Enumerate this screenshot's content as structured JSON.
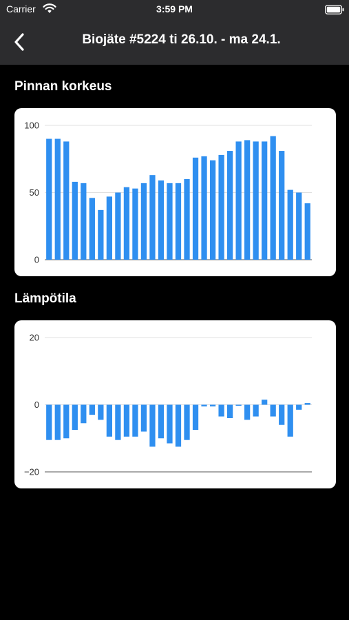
{
  "status_bar": {
    "carrier": "Carrier",
    "time": "3:59 PM",
    "wifi_icon": "wifi-icon",
    "battery_icon": "battery-icon"
  },
  "nav": {
    "back_icon": "chevron-left-icon",
    "title": "Biojäte #5224 ti 26.10. - ma 24.1."
  },
  "sections": [
    {
      "title": "Pinnan korkeus"
    },
    {
      "title": "Lämpötila"
    }
  ],
  "colors": {
    "background": "#000000",
    "nav_background": "#2c2c2e",
    "card_background": "#ffffff",
    "bar_color": "#2f8ff0",
    "grid_color": "#e0e0e0"
  },
  "chart_data": [
    {
      "type": "bar",
      "ylim": [
        0,
        100
      ],
      "yticks": [
        "0",
        "50",
        "100"
      ],
      "values": [
        90,
        90,
        88,
        58,
        57,
        46,
        37,
        47,
        50,
        54,
        53,
        57,
        63,
        59,
        57,
        57,
        60,
        76,
        77,
        74,
        78,
        81,
        88,
        89,
        88,
        88,
        92,
        81,
        52,
        50,
        42
      ]
    },
    {
      "type": "bar",
      "ylim": [
        -20,
        20
      ],
      "yticks": [
        "−20",
        "0",
        "20"
      ],
      "values": [
        -10.5,
        -10.5,
        -10,
        -7.5,
        -5.5,
        -3,
        -4.5,
        -9.5,
        -10.5,
        -9.5,
        -9.5,
        -8,
        -12.5,
        -10,
        -11.5,
        -12.5,
        -10.5,
        -7.5,
        -0.5,
        -0.5,
        -3.5,
        -4,
        -0.3,
        -4.5,
        -3.5,
        1.5,
        -3.5,
        -6,
        -9.5,
        -1.5,
        0.5
      ]
    }
  ]
}
